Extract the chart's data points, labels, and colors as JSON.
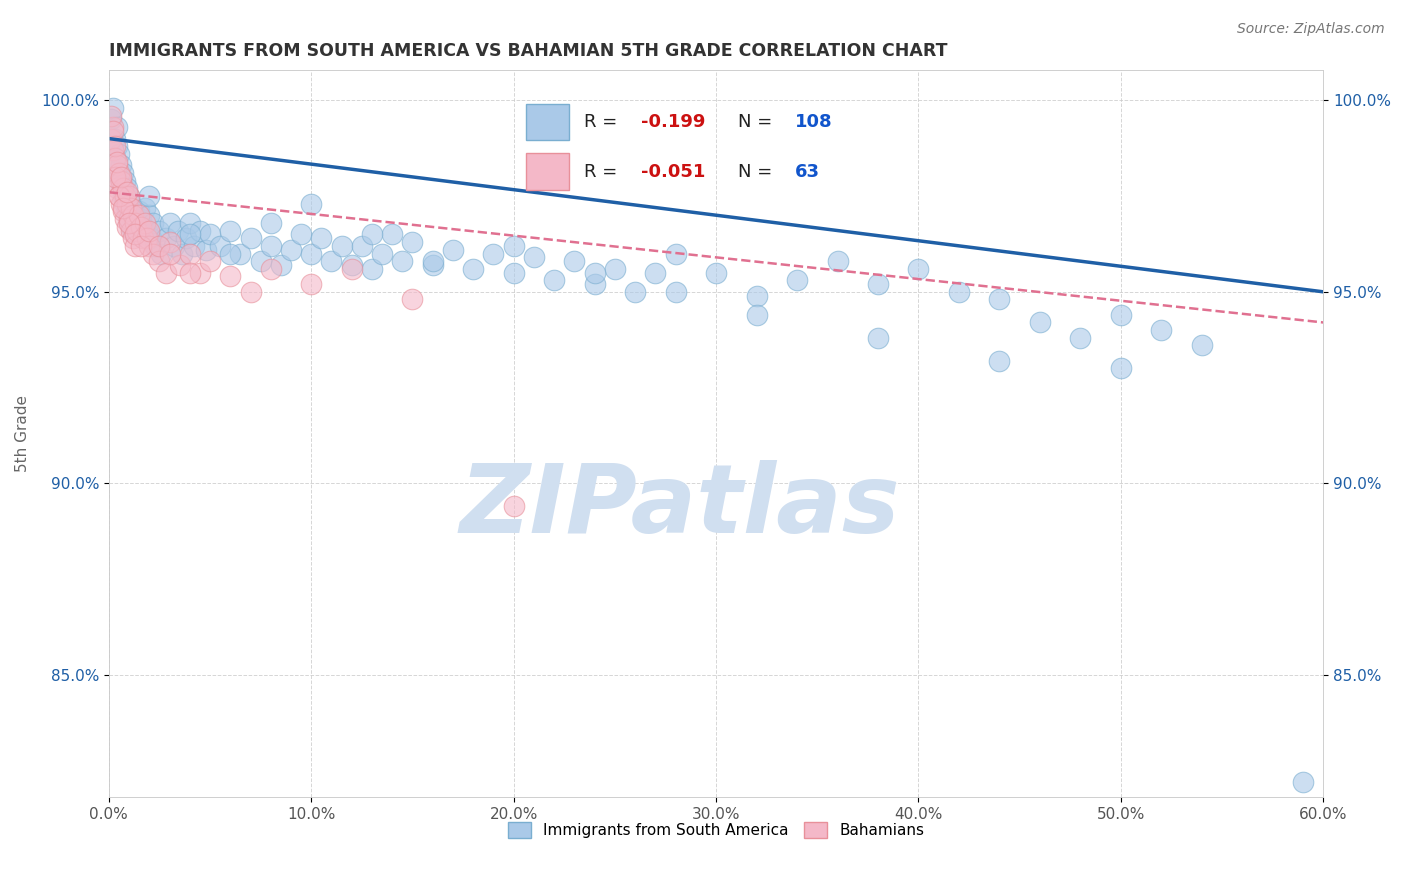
{
  "title": "IMMIGRANTS FROM SOUTH AMERICA VS BAHAMIAN 5TH GRADE CORRELATION CHART",
  "source_text": "Source: ZipAtlas.com",
  "ylabel": "5th Grade",
  "xlim": [
    0.0,
    0.6
  ],
  "ylim": [
    0.818,
    1.008
  ],
  "xticks": [
    0.0,
    0.1,
    0.2,
    0.3,
    0.4,
    0.5,
    0.6
  ],
  "xticklabels": [
    "0.0%",
    "10.0%",
    "20.0%",
    "30.0%",
    "40.0%",
    "50.0%",
    "60.0%"
  ],
  "yticks": [
    0.85,
    0.9,
    0.95,
    1.0
  ],
  "yticklabels": [
    "85.0%",
    "90.0%",
    "95.0%",
    "100.0%"
  ],
  "blue_color": "#aac9e8",
  "pink_color": "#f4b8c8",
  "blue_edge_color": "#7aaed0",
  "pink_edge_color": "#e8909a",
  "blue_line_color": "#1f5fa6",
  "pink_line_color": "#e07090",
  "R_blue": -0.199,
  "N_blue": 108,
  "R_pink": -0.051,
  "N_pink": 63,
  "watermark": "ZIPatlas",
  "watermark_color": "#d0dff0",
  "legend_blue": "Immigrants from South America",
  "legend_pink": "Bahamians",
  "blue_trend_x0": 0.0,
  "blue_trend_y0": 0.99,
  "blue_trend_x1": 0.6,
  "blue_trend_y1": 0.95,
  "pink_trend_x0": 0.0,
  "pink_trend_y0": 0.976,
  "pink_trend_x1": 0.6,
  "pink_trend_y1": 0.942,
  "blue_scatter_x": [
    0.001,
    0.002,
    0.003,
    0.003,
    0.004,
    0.004,
    0.005,
    0.005,
    0.006,
    0.006,
    0.007,
    0.007,
    0.008,
    0.008,
    0.009,
    0.009,
    0.01,
    0.01,
    0.011,
    0.011,
    0.012,
    0.012,
    0.013,
    0.014,
    0.015,
    0.015,
    0.016,
    0.017,
    0.018,
    0.019,
    0.02,
    0.021,
    0.022,
    0.023,
    0.025,
    0.026,
    0.028,
    0.03,
    0.032,
    0.034,
    0.036,
    0.038,
    0.04,
    0.042,
    0.045,
    0.048,
    0.05,
    0.055,
    0.06,
    0.065,
    0.07,
    0.075,
    0.08,
    0.085,
    0.09,
    0.095,
    0.1,
    0.105,
    0.11,
    0.115,
    0.12,
    0.125,
    0.13,
    0.135,
    0.14,
    0.145,
    0.15,
    0.16,
    0.17,
    0.18,
    0.19,
    0.2,
    0.21,
    0.22,
    0.23,
    0.24,
    0.25,
    0.26,
    0.27,
    0.28,
    0.3,
    0.32,
    0.34,
    0.36,
    0.38,
    0.4,
    0.42,
    0.44,
    0.46,
    0.48,
    0.5,
    0.52,
    0.54,
    0.02,
    0.04,
    0.06,
    0.08,
    0.1,
    0.13,
    0.16,
    0.2,
    0.24,
    0.28,
    0.32,
    0.38,
    0.44,
    0.5,
    0.59
  ],
  "blue_scatter_y": [
    0.995,
    0.998,
    0.99,
    0.985,
    0.993,
    0.988,
    0.986,
    0.98,
    0.983,
    0.978,
    0.981,
    0.975,
    0.979,
    0.973,
    0.977,
    0.971,
    0.975,
    0.969,
    0.973,
    0.967,
    0.971,
    0.966,
    0.97,
    0.968,
    0.971,
    0.965,
    0.969,
    0.967,
    0.972,
    0.966,
    0.97,
    0.964,
    0.968,
    0.962,
    0.966,
    0.96,
    0.964,
    0.968,
    0.962,
    0.966,
    0.96,
    0.964,
    0.968,
    0.962,
    0.966,
    0.961,
    0.965,
    0.962,
    0.966,
    0.96,
    0.964,
    0.958,
    0.962,
    0.957,
    0.961,
    0.965,
    0.96,
    0.964,
    0.958,
    0.962,
    0.957,
    0.962,
    0.956,
    0.96,
    0.965,
    0.958,
    0.963,
    0.957,
    0.961,
    0.956,
    0.96,
    0.955,
    0.959,
    0.953,
    0.958,
    0.952,
    0.956,
    0.95,
    0.955,
    0.96,
    0.955,
    0.949,
    0.953,
    0.958,
    0.952,
    0.956,
    0.95,
    0.948,
    0.942,
    0.938,
    0.944,
    0.94,
    0.936,
    0.975,
    0.965,
    0.96,
    0.968,
    0.973,
    0.965,
    0.958,
    0.962,
    0.955,
    0.95,
    0.944,
    0.938,
    0.932,
    0.93,
    0.822
  ],
  "pink_scatter_x": [
    0.001,
    0.002,
    0.002,
    0.003,
    0.003,
    0.004,
    0.004,
    0.005,
    0.005,
    0.006,
    0.006,
    0.007,
    0.007,
    0.008,
    0.008,
    0.009,
    0.009,
    0.01,
    0.01,
    0.011,
    0.011,
    0.012,
    0.012,
    0.013,
    0.013,
    0.014,
    0.015,
    0.016,
    0.017,
    0.018,
    0.019,
    0.02,
    0.022,
    0.025,
    0.028,
    0.03,
    0.035,
    0.04,
    0.045,
    0.05,
    0.06,
    0.07,
    0.08,
    0.1,
    0.12,
    0.15,
    0.003,
    0.005,
    0.007,
    0.01,
    0.013,
    0.016,
    0.02,
    0.025,
    0.03,
    0.04,
    0.001,
    0.002,
    0.003,
    0.004,
    0.006,
    0.009,
    0.2
  ],
  "pink_scatter_y": [
    0.99,
    0.993,
    0.987,
    0.985,
    0.979,
    0.983,
    0.977,
    0.981,
    0.975,
    0.979,
    0.973,
    0.977,
    0.971,
    0.975,
    0.969,
    0.973,
    0.967,
    0.975,
    0.969,
    0.972,
    0.966,
    0.97,
    0.964,
    0.968,
    0.962,
    0.966,
    0.97,
    0.967,
    0.964,
    0.968,
    0.964,
    0.962,
    0.96,
    0.958,
    0.955,
    0.963,
    0.957,
    0.96,
    0.955,
    0.958,
    0.954,
    0.95,
    0.956,
    0.952,
    0.956,
    0.948,
    0.98,
    0.975,
    0.972,
    0.968,
    0.965,
    0.962,
    0.966,
    0.962,
    0.96,
    0.955,
    0.996,
    0.992,
    0.988,
    0.984,
    0.98,
    0.976,
    0.894
  ]
}
